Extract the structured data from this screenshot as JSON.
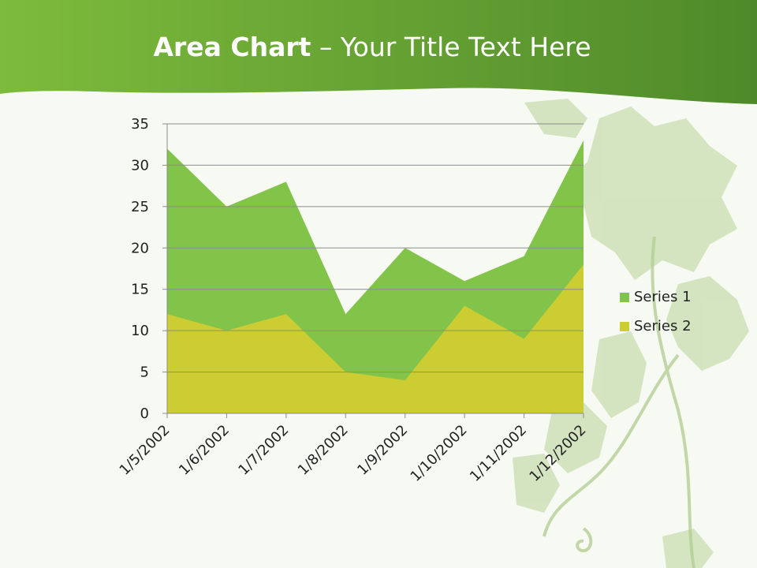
{
  "title": {
    "bold": "Area Chart",
    "rest": " – Your Title Text Here"
  },
  "colors": {
    "header_dark": "#4f8a2a",
    "header_light": "#7dbb3c",
    "series1": "#82c44a",
    "series2": "#cccc33",
    "gridline": "#8c8c8c",
    "leaves": "#c9ddb0"
  },
  "chart_data": {
    "type": "area",
    "stacked": true,
    "x": [
      "1/5/2002",
      "1/6/2002",
      "1/7/2002",
      "1/8/2002",
      "1/9/2002",
      "1/10/2002",
      "1/11/2002",
      "1/12/2002"
    ],
    "series": [
      {
        "name": "Series 1",
        "values": [
          20,
          15,
          16,
          7,
          16,
          3,
          10,
          15
        ]
      },
      {
        "name": "Series 2",
        "values": [
          12,
          10,
          12,
          5,
          4,
          13,
          9,
          18
        ]
      }
    ],
    "yticks": [
      "0",
      "5",
      "10",
      "15",
      "20",
      "25",
      "30",
      "35"
    ],
    "ylim": [
      0,
      35
    ],
    "grid": true,
    "legend_position": "right"
  }
}
